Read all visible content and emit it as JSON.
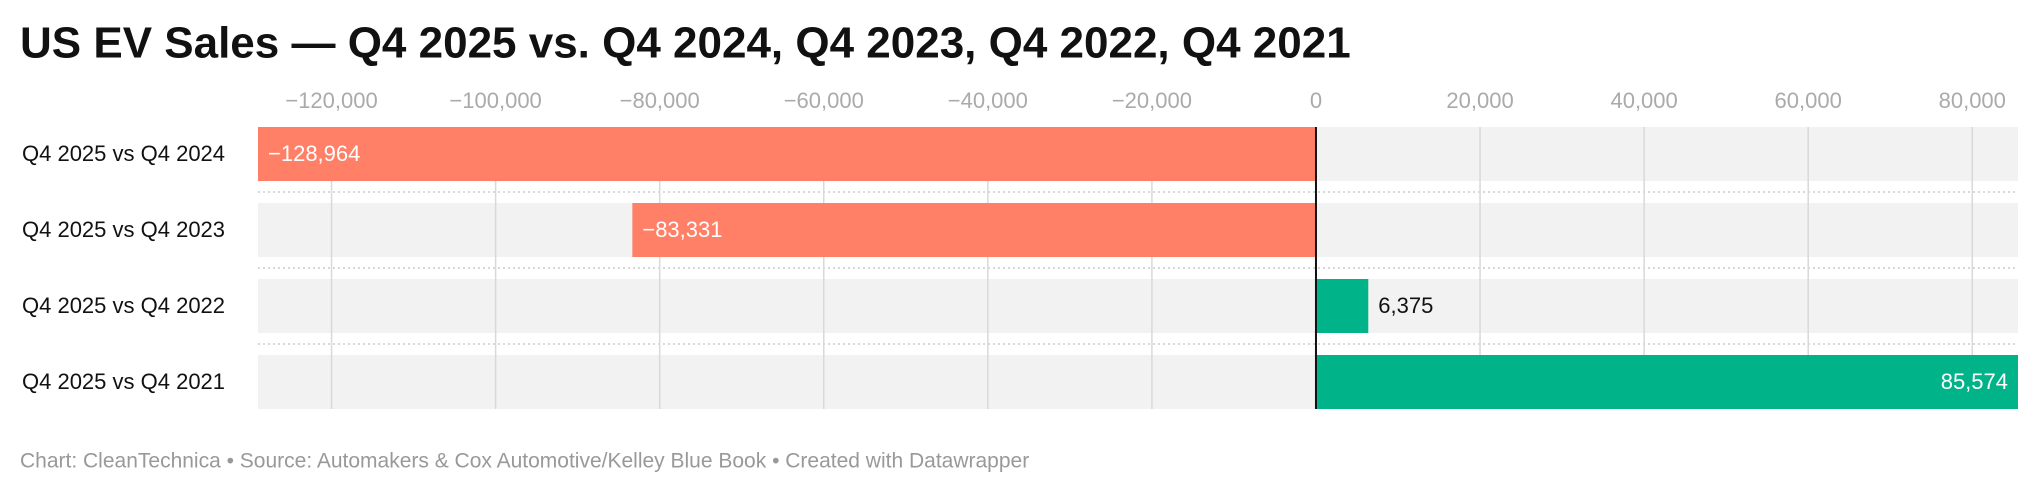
{
  "chart_data": {
    "type": "bar",
    "orientation": "horizontal",
    "title": "US EV Sales — Q4 2025 vs. Q4 2024, Q4 2023, Q4 2022, Q4 2021",
    "categories": [
      "Q4 2025 vs Q4 2024",
      "Q4 2025 vs Q4 2023",
      "Q4 2025 vs Q4 2022",
      "Q4 2025 vs Q4 2021"
    ],
    "values": [
      -128964,
      -83331,
      6375,
      85574
    ],
    "value_labels": [
      "−128,964",
      "−83,331",
      "6,375",
      "85,574"
    ],
    "negative_color": "#ff8066",
    "positive_color": "#00b388",
    "xlim": [
      -128964,
      85574
    ],
    "xticks": [
      {
        "value": -120000,
        "label": "−120,000"
      },
      {
        "value": -100000,
        "label": "−100,000"
      },
      {
        "value": -80000,
        "label": "−80,000"
      },
      {
        "value": -60000,
        "label": "−60,000"
      },
      {
        "value": -40000,
        "label": "−40,000"
      },
      {
        "value": -20000,
        "label": "−20,000"
      },
      0,
      {
        "value": 20000,
        "label": "20,000"
      },
      {
        "value": 40000,
        "label": "40,000"
      },
      {
        "value": 60000,
        "label": "60,000"
      },
      {
        "value": 80000,
        "label": "80,000"
      }
    ],
    "grid": true,
    "source": "Chart: CleanTechnica • Source: Automakers & Cox Automotive/Kelley Blue Book • Created with Datawrapper"
  }
}
